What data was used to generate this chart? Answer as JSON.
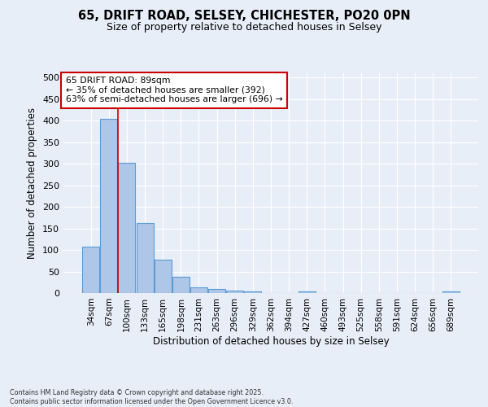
{
  "title_line1": "65, DRIFT ROAD, SELSEY, CHICHESTER, PO20 0PN",
  "title_line2": "Size of property relative to detached houses in Selsey",
  "xlabel": "Distribution of detached houses by size in Selsey",
  "ylabel": "Number of detached properties",
  "categories": [
    "34sqm",
    "67sqm",
    "100sqm",
    "133sqm",
    "165sqm",
    "198sqm",
    "231sqm",
    "263sqm",
    "296sqm",
    "329sqm",
    "362sqm",
    "394sqm",
    "427sqm",
    "460sqm",
    "493sqm",
    "525sqm",
    "558sqm",
    "591sqm",
    "624sqm",
    "656sqm",
    "689sqm"
  ],
  "values": [
    107,
    404,
    303,
    163,
    77,
    38,
    13,
    10,
    5,
    3,
    0,
    0,
    3,
    0,
    0,
    0,
    0,
    0,
    0,
    0,
    3
  ],
  "bar_color": "#aec6e8",
  "bar_edgecolor": "#5b9bd5",
  "red_line_x": 1.5,
  "annotation_title": "65 DRIFT ROAD: 89sqm",
  "annotation_line1": "← 35% of detached houses are smaller (392)",
  "annotation_line2": "63% of semi-detached houses are larger (696) →",
  "annotation_box_color": "#ffffff",
  "annotation_box_edgecolor": "#cc0000",
  "ylim": [
    0,
    510
  ],
  "yticks": [
    0,
    50,
    100,
    150,
    200,
    250,
    300,
    350,
    400,
    450,
    500
  ],
  "background_color": "#e8eef8",
  "grid_color": "#ffffff",
  "footer_line1": "Contains HM Land Registry data © Crown copyright and database right 2025.",
  "footer_line2": "Contains public sector information licensed under the Open Government Licence v3.0."
}
